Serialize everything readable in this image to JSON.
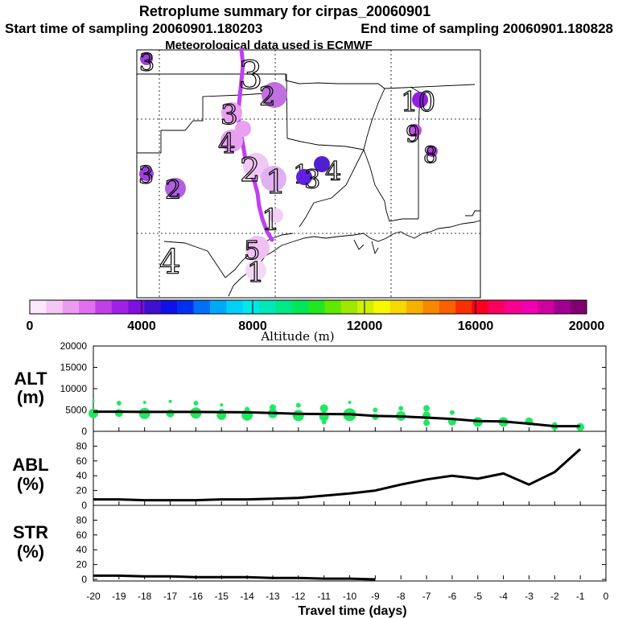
{
  "title": {
    "line1": "Retroplume summary for cirpas_20060901",
    "start": "Start time of sampling 20060901.180203",
    "end": "End time of sampling 20060901.180828",
    "met": "Meteorological data used is ECMWF"
  },
  "map": {
    "track_color": "#c040f0",
    "day_labels": [
      {
        "text": "3",
        "color": "#a040e0",
        "size": "large"
      },
      {
        "text": "2",
        "color": "#b060e0",
        "size": "large"
      },
      {
        "text": "3",
        "color": "#e8a0f0",
        "size": "large"
      },
      {
        "text": "4",
        "color": "#e8a0f0",
        "size": "large"
      },
      {
        "text": "2",
        "color": "#f0c8f4",
        "size": "large"
      },
      {
        "text": "1",
        "color": "#e0b0f0",
        "size": "large"
      },
      {
        "text": "1",
        "color": "#7020e0",
        "size": "medium"
      },
      {
        "text": "3",
        "color": "#6020e0",
        "size": "medium"
      },
      {
        "text": "4",
        "color": "#5020d0",
        "size": "medium"
      },
      {
        "text": "10",
        "color": "#9020e0",
        "size": "large"
      },
      {
        "text": "9",
        "color": "#c050e0",
        "size": "medium"
      },
      {
        "text": "8",
        "color": "#b040e0",
        "size": "medium"
      },
      {
        "text": "3",
        "color": "#b050e0",
        "size": "medium"
      },
      {
        "text": "2",
        "color": "#c070e0",
        "size": "large"
      },
      {
        "text": "1",
        "color": "#f0d0f4",
        "size": "large"
      },
      {
        "text": "5",
        "color": "#f0c0f4",
        "size": "large"
      },
      {
        "text": "1",
        "color": "#f4d8f6",
        "size": "large"
      },
      {
        "text": "4",
        "color": "#ffffff",
        "size": "large"
      }
    ]
  },
  "colorbar": {
    "colors": [
      "#fce8fc",
      "#f4c8f4",
      "#ec9cf0",
      "#e070f0",
      "#c040e8",
      "#a020e8",
      "#8010e0",
      "#4010d0",
      "#1010e8",
      "#0030f0",
      "#0070f8",
      "#00a8f8",
      "#00d0f8",
      "#00e8e8",
      "#00e8b8",
      "#00e888",
      "#00e858",
      "#20e820",
      "#60e800",
      "#a0e800",
      "#d0f000",
      "#f8f800",
      "#f8d800",
      "#f8b000",
      "#f88800",
      "#f86000",
      "#f83000",
      "#f80020",
      "#f80060",
      "#f80090",
      "#f000b0",
      "#d000a0",
      "#a00090",
      "#800070"
    ],
    "tick_labels": [
      "0",
      "4000",
      "8000",
      "12000",
      "16000",
      "20000"
    ],
    "xlabel": "Altitude (m)"
  },
  "chart_data": [
    {
      "type": "line",
      "panel": "ALT",
      "ylabel": "ALT\n(m)",
      "ylabel_line1": "ALT",
      "ylabel_line2": "(m)",
      "ylim": [
        0,
        20000
      ],
      "yticks": [
        0,
        5000,
        10000,
        15000,
        20000
      ],
      "xlim": [
        -20,
        0
      ],
      "x": [
        -20,
        -19,
        -18,
        -17,
        -16,
        -15,
        -14,
        -13,
        -12,
        -11,
        -10,
        -9,
        -8,
        -7,
        -6,
        -5,
        -4,
        -3,
        -2,
        -1
      ],
      "mean": [
        4600,
        4600,
        4550,
        4550,
        4550,
        4500,
        4450,
        4300,
        4100,
        4050,
        4000,
        3600,
        3500,
        3200,
        2900,
        2400,
        2300,
        1800,
        1200,
        1200
      ],
      "scatter_color": "#20e860",
      "scatter": [
        {
          "x": -20,
          "y": 7200,
          "r": 1.5
        },
        {
          "x": -20,
          "y": 4200,
          "r": 6
        },
        {
          "x": -19,
          "y": 6600,
          "r": 3
        },
        {
          "x": -19,
          "y": 4300,
          "r": 5
        },
        {
          "x": -18,
          "y": 6800,
          "r": 2
        },
        {
          "x": -18,
          "y": 4200,
          "r": 7
        },
        {
          "x": -17,
          "y": 7000,
          "r": 2
        },
        {
          "x": -17,
          "y": 4200,
          "r": 5
        },
        {
          "x": -16,
          "y": 6600,
          "r": 3
        },
        {
          "x": -16,
          "y": 4300,
          "r": 7
        },
        {
          "x": -15,
          "y": 6200,
          "r": 2
        },
        {
          "x": -15,
          "y": 4500,
          "r": 4
        },
        {
          "x": -15,
          "y": 3800,
          "r": 6
        },
        {
          "x": -14,
          "y": 5200,
          "r": 3
        },
        {
          "x": -14,
          "y": 3800,
          "r": 7
        },
        {
          "x": -13,
          "y": 5600,
          "r": 4
        },
        {
          "x": -13,
          "y": 4200,
          "r": 6
        },
        {
          "x": -12,
          "y": 6100,
          "r": 3
        },
        {
          "x": -12,
          "y": 3700,
          "r": 7
        },
        {
          "x": -11,
          "y": 5400,
          "r": 5
        },
        {
          "x": -11,
          "y": 3500,
          "r": 6
        },
        {
          "x": -11,
          "y": 2200,
          "r": 3
        },
        {
          "x": -10,
          "y": 6800,
          "r": 2
        },
        {
          "x": -10,
          "y": 3900,
          "r": 8
        },
        {
          "x": -9,
          "y": 5000,
          "r": 3
        },
        {
          "x": -9,
          "y": 3400,
          "r": 4
        },
        {
          "x": -8,
          "y": 5400,
          "r": 3
        },
        {
          "x": -8,
          "y": 3600,
          "r": 6
        },
        {
          "x": -7,
          "y": 5400,
          "r": 4
        },
        {
          "x": -7,
          "y": 3700,
          "r": 5
        },
        {
          "x": -7,
          "y": 2000,
          "r": 4
        },
        {
          "x": -6,
          "y": 4400,
          "r": 3
        },
        {
          "x": -6,
          "y": 2300,
          "r": 5
        },
        {
          "x": -5,
          "y": 2200,
          "r": 6
        },
        {
          "x": -4,
          "y": 2200,
          "r": 6
        },
        {
          "x": -3,
          "y": 2300,
          "r": 5
        },
        {
          "x": -2,
          "y": 1600,
          "r": 3
        },
        {
          "x": -2,
          "y": 1000,
          "r": 4
        },
        {
          "x": -1,
          "y": 1000,
          "r": 5
        }
      ]
    },
    {
      "type": "line",
      "panel": "ABL",
      "ylabel": "ABL\n(%)",
      "ylabel_line1": "ABL",
      "ylabel_line2": "(%)",
      "ylim": [
        0,
        100
      ],
      "yticks": [
        0,
        20,
        40,
        60,
        80
      ],
      "xlim": [
        -20,
        0
      ],
      "x": [
        -20,
        -19,
        -18,
        -17,
        -16,
        -15,
        -14,
        -13,
        -12,
        -11,
        -10,
        -9,
        -8,
        -7,
        -6,
        -5,
        -4,
        -3,
        -2,
        -1
      ],
      "values": [
        8,
        8,
        7,
        7,
        7,
        8,
        8,
        9,
        10,
        13,
        16,
        20,
        28,
        35,
        40,
        36,
        43,
        28,
        45,
        76
      ]
    },
    {
      "type": "line",
      "panel": "STR",
      "ylabel": "STR\n(%)",
      "ylabel_line1": "STR",
      "ylabel_line2": "(%)",
      "ylim": [
        0,
        100
      ],
      "yticks": [
        0,
        20,
        40,
        60,
        80
      ],
      "xlim": [
        -20,
        0
      ],
      "x": [
        -20,
        -19,
        -18,
        -17,
        -16,
        -15,
        -14,
        -13,
        -12,
        -11,
        -10,
        -9
      ],
      "values": [
        5,
        5,
        4,
        4,
        3,
        3,
        3,
        2,
        2,
        1,
        1,
        0
      ]
    }
  ],
  "xaxis": {
    "tick_labels": [
      "-20",
      "-19",
      "-18",
      "-17",
      "-16",
      "-15",
      "-14",
      "-13",
      "-12",
      "-11",
      "-10",
      "-9",
      "-8",
      "-7",
      "-6",
      "-5",
      "-4",
      "-3",
      "-2",
      "-1",
      "0"
    ],
    "xlabel": "Travel time (days)"
  }
}
